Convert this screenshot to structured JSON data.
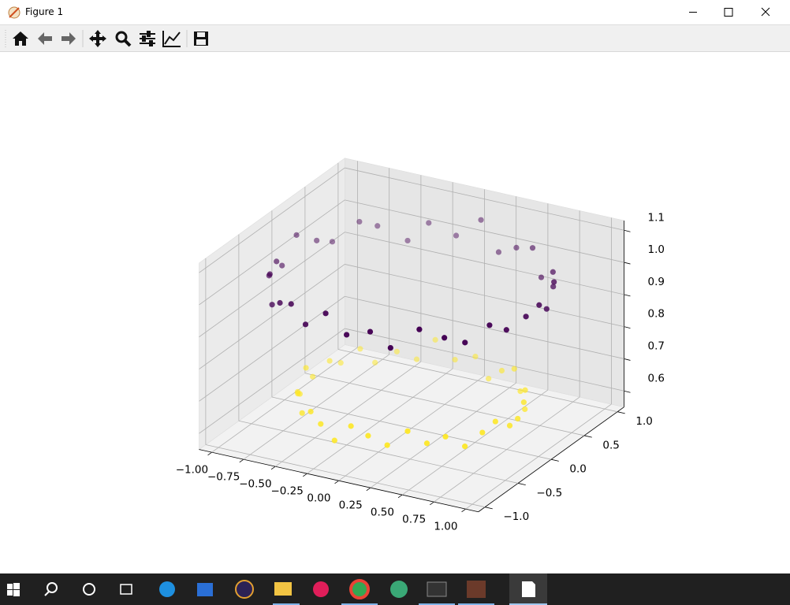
{
  "window": {
    "title": "Figure 1"
  },
  "chart_data": {
    "type": "scatter3d",
    "xlim": [
      -1.1,
      1.1
    ],
    "ylim": [
      -1.1,
      1.1
    ],
    "zlim": [
      0.55,
      1.13
    ],
    "xticks": [
      {
        "value": -1,
        "label": "−1.00"
      },
      {
        "value": -0.75,
        "label": "−0.75"
      },
      {
        "value": -0.5,
        "label": "−0.50"
      },
      {
        "value": -0.25,
        "label": "−0.25"
      },
      {
        "value": 0,
        "label": "0.00"
      },
      0.25,
      {
        "value": 0.5,
        "label": "0.50"
      },
      0.75,
      {
        "value": 1,
        "label": "1.00"
      }
    ],
    "yticks": [
      {
        "value": -1,
        "label": "−1.0"
      },
      {
        "value": -0.5,
        "label": "−0.5"
      },
      {
        "value": 0,
        "label": "0.0"
      },
      0.5,
      {
        "value": 1,
        "label": "1.0"
      }
    ],
    "zticks": [
      0.6,
      0.7,
      0.8,
      0.9,
      {
        "value": 1,
        "label": "1.0"
      },
      1.1
    ],
    "grid": true,
    "series": [
      {
        "color": "#fde725",
        "x": [
          0.8,
          0.78,
          0.71,
          0.66,
          0.56,
          0.47,
          0.33,
          0.21,
          0.08,
          -0.07,
          -0.22,
          -0.33,
          -0.46,
          -0.58,
          -0.65,
          -0.73,
          -0.76,
          -0.81,
          -0.79,
          -0.77,
          -0.72,
          -0.65,
          -0.57,
          -0.45,
          -0.34,
          -0.2,
          -0.06,
          0.07,
          0.21,
          0.35,
          0.46,
          0.57,
          0.66,
          0.73,
          0.77,
          0.81
        ],
        "y": [
          0.07,
          0.2,
          0.35,
          0.45,
          0.57,
          0.65,
          0.73,
          0.76,
          0.81,
          0.79,
          0.78,
          0.71,
          0.66,
          0.56,
          0.47,
          0.33,
          0.22,
          0.06,
          -0.08,
          -0.21,
          -0.34,
          -0.47,
          -0.56,
          -0.66,
          -0.72,
          -0.78,
          -0.8,
          -0.79,
          -0.77,
          -0.73,
          -0.65,
          -0.58,
          -0.46,
          -0.33,
          -0.21,
          -0.07
        ],
        "z": [
          0.64,
          0.67,
          0.62,
          0.66,
          0.63,
          0.68,
          0.65,
          0.61,
          0.66,
          0.64,
          0.69,
          0.63,
          0.65,
          0.62,
          0.67,
          0.64,
          0.66,
          0.63,
          0.68,
          0.62,
          0.65,
          0.67,
          0.63,
          0.66,
          0.64,
          0.61,
          0.67,
          0.65,
          0.63,
          0.68,
          0.64,
          0.66,
          0.62,
          0.65,
          0.67,
          0.64
        ]
      },
      {
        "color": "#440154",
        "x": [
          1.0,
          0.97,
          0.95,
          0.85,
          0.78,
          0.62,
          0.51,
          0.33,
          0.18,
          0.02,
          -0.16,
          -0.35,
          -0.49,
          -0.66,
          -0.75,
          -0.88,
          -0.93,
          -0.99,
          -1.01,
          -0.97,
          -0.95,
          -0.85,
          -0.77,
          -0.63,
          -0.5,
          -0.35,
          -0.16,
          0.01,
          0.18,
          0.33,
          0.51,
          0.65,
          0.76,
          0.87,
          0.93,
          0.99
        ],
        "y": [
          0.01,
          0.18,
          0.33,
          0.51,
          0.64,
          0.77,
          0.85,
          0.95,
          0.97,
          1.01,
          0.98,
          0.93,
          0.88,
          0.75,
          0.65,
          0.49,
          0.35,
          0.16,
          -0.02,
          -0.18,
          -0.33,
          -0.51,
          -0.63,
          -0.78,
          -0.86,
          -0.93,
          -0.99,
          -1.0,
          -0.97,
          -0.95,
          -0.86,
          -0.75,
          -0.65,
          -0.49,
          -0.35,
          -0.17
        ],
        "z": [
          1.02,
          0.98,
          1.04,
          0.99,
          1.01,
          0.96,
          1.03,
          1.0,
          0.97,
          1.05,
          0.99,
          1.02,
          0.96,
          1.01,
          1.03,
          0.98,
          1.0,
          1.04,
          0.97,
          1.01,
          0.99,
          1.03,
          0.96,
          1.0,
          1.02,
          0.98,
          1.04,
          0.99,
          1.01,
          0.97,
          1.03,
          1.0,
          0.98,
          1.02,
          0.99,
          1.01
        ]
      }
    ]
  }
}
